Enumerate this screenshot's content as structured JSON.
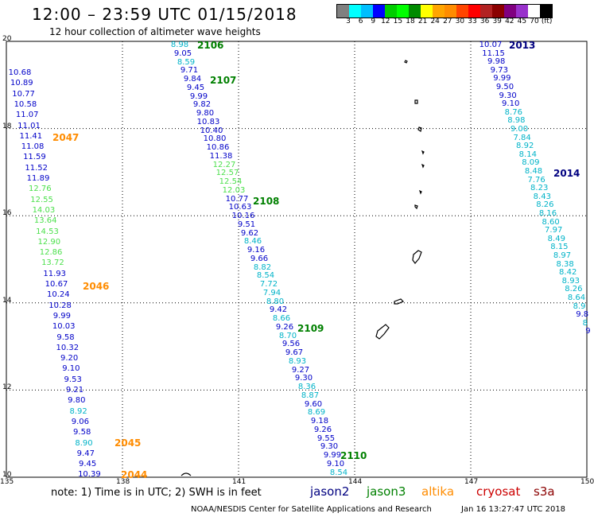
{
  "header": {
    "title": "12:00 – 23:59 UTC 01/15/2018",
    "subtitle": "12 hour collection of altimeter wave heights"
  },
  "legend": {
    "colors": [
      "#808080",
      "#00ffff",
      "#00bfff",
      "#0000ff",
      "#00cd00",
      "#00ff00",
      "#008b00",
      "#ffff00",
      "#ffa500",
      "#ff8c00",
      "#ff4500",
      "#ff0000",
      "#b22222",
      "#8b0000",
      "#800080",
      "#9932cc",
      "#ffffff",
      "#000000"
    ],
    "labels": [
      "3",
      "6",
      "9",
      "12",
      "15",
      "18",
      "21",
      "24",
      "27",
      "30",
      "33",
      "36",
      "39",
      "42",
      "45",
      "70",
      "(ft)"
    ]
  },
  "axes": {
    "x_ticks": [
      "135",
      "138",
      "141",
      "144",
      "147",
      "150"
    ],
    "y_ticks": [
      "10",
      "12",
      "14",
      "16",
      "18",
      "20"
    ]
  },
  "colors": {
    "jason2": "#000080",
    "jason3": "#008000",
    "altika": "#ff8c00",
    "cryosat": "#cc0000",
    "s3a": "#8b0000",
    "cyan": "#00b3c8",
    "lightgreen": "#4ce04c",
    "blue": "#0000c8"
  },
  "passes": [
    {
      "label": "2106",
      "color": "jason3"
    },
    {
      "label": "2107",
      "color": "jason3"
    },
    {
      "label": "2108",
      "color": "jason3"
    },
    {
      "label": "2109",
      "color": "jason3"
    },
    {
      "label": "2110",
      "color": "jason3"
    },
    {
      "label": "2047",
      "color": "altika"
    },
    {
      "label": "2046",
      "color": "altika"
    },
    {
      "label": "2045",
      "color": "altika"
    },
    {
      "label": "2044",
      "color": "altika"
    },
    {
      "label": "2013",
      "color": "jason2"
    },
    {
      "label": "2014",
      "color": "jason2"
    }
  ],
  "track_left": [
    {
      "v": "10.68",
      "c": "blue"
    },
    {
      "v": "10.89",
      "c": "blue"
    },
    {
      "v": "10.77",
      "c": "blue"
    },
    {
      "v": "10.58",
      "c": "blue"
    },
    {
      "v": "11.07",
      "c": "blue"
    },
    {
      "v": "11.01",
      "c": "blue"
    },
    {
      "v": "11.41",
      "c": "blue"
    },
    {
      "v": "11.08",
      "c": "blue"
    },
    {
      "v": "11.59",
      "c": "blue"
    },
    {
      "v": "11.52",
      "c": "blue"
    },
    {
      "v": "11.89",
      "c": "blue"
    },
    {
      "v": "12.76",
      "c": "lightgreen"
    },
    {
      "v": "12.55",
      "c": "lightgreen"
    },
    {
      "v": "14.03",
      "c": "lightgreen"
    },
    {
      "v": "13.64",
      "c": "lightgreen"
    },
    {
      "v": "14.53",
      "c": "lightgreen"
    },
    {
      "v": "12.90",
      "c": "lightgreen"
    },
    {
      "v": "12.86",
      "c": "lightgreen"
    },
    {
      "v": "13.72",
      "c": "lightgreen"
    },
    {
      "v": "11.93",
      "c": "blue"
    },
    {
      "v": "10.67",
      "c": "blue"
    },
    {
      "v": "10.24",
      "c": "blue"
    },
    {
      "v": "10.28",
      "c": "blue"
    },
    {
      "v": "9.99",
      "c": "blue"
    },
    {
      "v": "10.03",
      "c": "blue"
    },
    {
      "v": "9.58",
      "c": "blue"
    },
    {
      "v": "10.32",
      "c": "blue"
    },
    {
      "v": "9.20",
      "c": "blue"
    },
    {
      "v": "9.10",
      "c": "blue"
    },
    {
      "v": "9.53",
      "c": "blue"
    },
    {
      "v": "9.21",
      "c": "blue"
    },
    {
      "v": "9.80",
      "c": "blue"
    },
    {
      "v": "8.92",
      "c": "cyan"
    },
    {
      "v": "9.06",
      "c": "blue"
    },
    {
      "v": "9.58",
      "c": "blue"
    },
    {
      "v": "8.90",
      "c": "cyan"
    },
    {
      "v": "9.47",
      "c": "blue"
    },
    {
      "v": "9.45",
      "c": "blue"
    },
    {
      "v": "10.39",
      "c": "blue"
    }
  ],
  "track_mid": [
    {
      "v": "8.98",
      "c": "cyan"
    },
    {
      "v": "9.05",
      "c": "blue"
    },
    {
      "v": "8.59",
      "c": "cyan"
    },
    {
      "v": "9.71",
      "c": "blue"
    },
    {
      "v": "9.84",
      "c": "blue"
    },
    {
      "v": "9.45",
      "c": "blue"
    },
    {
      "v": "9.99",
      "c": "blue"
    },
    {
      "v": "9.82",
      "c": "blue"
    },
    {
      "v": "9.80",
      "c": "blue"
    },
    {
      "v": "10.83",
      "c": "blue"
    },
    {
      "v": "10.40",
      "c": "blue"
    },
    {
      "v": "10.80",
      "c": "blue"
    },
    {
      "v": "10.86",
      "c": "blue"
    },
    {
      "v": "11.38",
      "c": "blue"
    },
    {
      "v": "12.27",
      "c": "lightgreen"
    },
    {
      "v": "12.57",
      "c": "lightgreen"
    },
    {
      "v": "12.54",
      "c": "lightgreen"
    },
    {
      "v": "12.03",
      "c": "lightgreen"
    },
    {
      "v": "10.77",
      "c": "blue"
    },
    {
      "v": "10.63",
      "c": "blue"
    },
    {
      "v": "10.16",
      "c": "blue"
    },
    {
      "v": "9.51",
      "c": "blue"
    },
    {
      "v": "9.62",
      "c": "blue"
    },
    {
      "v": "8.46",
      "c": "cyan"
    },
    {
      "v": "9.16",
      "c": "blue"
    },
    {
      "v": "9.66",
      "c": "blue"
    },
    {
      "v": "8.82",
      "c": "cyan"
    },
    {
      "v": "8.54",
      "c": "cyan"
    },
    {
      "v": "7.72",
      "c": "cyan"
    },
    {
      "v": "7.94",
      "c": "cyan"
    },
    {
      "v": "8.80",
      "c": "cyan"
    },
    {
      "v": "9.42",
      "c": "blue"
    },
    {
      "v": "8.66",
      "c": "cyan"
    },
    {
      "v": "9.26",
      "c": "blue"
    },
    {
      "v": "8.70",
      "c": "cyan"
    },
    {
      "v": "9.56",
      "c": "blue"
    },
    {
      "v": "9.67",
      "c": "blue"
    },
    {
      "v": "8.93",
      "c": "cyan"
    },
    {
      "v": "9.27",
      "c": "blue"
    },
    {
      "v": "9.30",
      "c": "blue"
    },
    {
      "v": "8.36",
      "c": "cyan"
    },
    {
      "v": "8.87",
      "c": "cyan"
    },
    {
      "v": "9.60",
      "c": "blue"
    },
    {
      "v": "8.69",
      "c": "cyan"
    },
    {
      "v": "9.18",
      "c": "blue"
    },
    {
      "v": "9.26",
      "c": "blue"
    },
    {
      "v": "9.55",
      "c": "blue"
    },
    {
      "v": "9.30",
      "c": "blue"
    },
    {
      "v": "9.99",
      "c": "blue"
    },
    {
      "v": "9.10",
      "c": "blue"
    },
    {
      "v": "8.54",
      "c": "cyan"
    }
  ],
  "track_right": [
    {
      "v": "10.07",
      "c": "blue"
    },
    {
      "v": "11.15",
      "c": "blue"
    },
    {
      "v": "9.98",
      "c": "blue"
    },
    {
      "v": "9.73",
      "c": "blue"
    },
    {
      "v": "9.99",
      "c": "blue"
    },
    {
      "v": "9.50",
      "c": "blue"
    },
    {
      "v": "9.30",
      "c": "blue"
    },
    {
      "v": "9.10",
      "c": "blue"
    },
    {
      "v": "8.76",
      "c": "cyan"
    },
    {
      "v": "8.98",
      "c": "cyan"
    },
    {
      "v": "9.00",
      "c": "cyan"
    },
    {
      "v": "7.84",
      "c": "cyan"
    },
    {
      "v": "8.92",
      "c": "cyan"
    },
    {
      "v": "8.14",
      "c": "cyan"
    },
    {
      "v": "8.09",
      "c": "cyan"
    },
    {
      "v": "8.48",
      "c": "cyan"
    },
    {
      "v": "7.76",
      "c": "cyan"
    },
    {
      "v": "8.23",
      "c": "cyan"
    },
    {
      "v": "8.43",
      "c": "cyan"
    },
    {
      "v": "8.26",
      "c": "cyan"
    },
    {
      "v": "8.16",
      "c": "cyan"
    },
    {
      "v": "8.60",
      "c": "cyan"
    },
    {
      "v": "7.97",
      "c": "cyan"
    },
    {
      "v": "8.49",
      "c": "cyan"
    },
    {
      "v": "8.15",
      "c": "cyan"
    },
    {
      "v": "8.97",
      "c": "cyan"
    },
    {
      "v": "8.38",
      "c": "cyan"
    },
    {
      "v": "8.42",
      "c": "cyan"
    },
    {
      "v": "8.93",
      "c": "cyan"
    },
    {
      "v": "8.26",
      "c": "cyan"
    },
    {
      "v": "8.64",
      "c": "cyan"
    },
    {
      "v": "8.9",
      "c": "cyan"
    },
    {
      "v": "9.8",
      "c": "blue"
    },
    {
      "v": "8",
      "c": "cyan"
    },
    {
      "v": "9",
      "c": "blue"
    }
  ],
  "footer": {
    "note": "note: 1) Time is in UTC; 2) SWH is in feet",
    "satellites": [
      {
        "name": "jason2",
        "color": "jason2"
      },
      {
        "name": "jason3",
        "color": "jason3"
      },
      {
        "name": "altika",
        "color": "altika"
      },
      {
        "name": "cryosat",
        "color": "cryosat"
      },
      {
        "name": "s3a",
        "color": "s3a"
      }
    ],
    "credit": "NOAA/NESDIS Center for Satellite Applications and Research",
    "timestamp": "Jan 16 13:27:47 UTC 2018"
  }
}
